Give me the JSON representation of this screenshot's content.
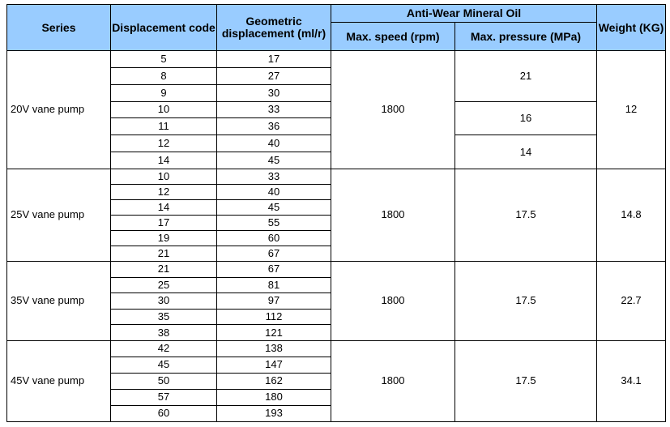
{
  "header": {
    "series": "Series",
    "code": "Displacement code",
    "geometric": "Geometric displacement (ml/r)",
    "oil": "Anti-Wear Mineral Oil",
    "speed": "Max. speed  (rpm)",
    "pressure": "Max. pressure (MPa)",
    "weight": "Weight (KG)"
  },
  "header_color": "#99ccff",
  "groups": [
    {
      "series": "20V vane pump",
      "speed": "1800",
      "weight": "12",
      "rows": [
        [
          "5",
          "17"
        ],
        [
          "8",
          "27"
        ],
        [
          "9",
          "30"
        ],
        [
          "10",
          "33"
        ],
        [
          "11",
          "36"
        ],
        [
          "12",
          "40"
        ],
        [
          "14",
          "45"
        ]
      ],
      "pressures": [
        {
          "value": "21",
          "span": 3
        },
        {
          "value": "16",
          "span": 2
        },
        {
          "value": "14",
          "span": 2
        }
      ]
    },
    {
      "series": "25V vane pump",
      "speed": "1800",
      "weight": "14.8",
      "rows": [
        [
          "10",
          "33"
        ],
        [
          "12",
          "40"
        ],
        [
          "14",
          "45"
        ],
        [
          "17",
          "55"
        ],
        [
          "19",
          "60"
        ],
        [
          "21",
          "67"
        ]
      ],
      "pressures": [
        {
          "value": "17.5",
          "span": 6
        }
      ]
    },
    {
      "series": "35V vane pump",
      "speed": "1800",
      "weight": "22.7",
      "rows": [
        [
          "21",
          "67"
        ],
        [
          "25",
          "81"
        ],
        [
          "30",
          "97"
        ],
        [
          "35",
          "112"
        ],
        [
          "38",
          "121"
        ]
      ],
      "pressures": [
        {
          "value": "17.5",
          "span": 5
        }
      ]
    },
    {
      "series": "45V vane pump",
      "speed": "1800",
      "weight": "34.1",
      "rows": [
        [
          "42",
          "138"
        ],
        [
          "45",
          "147"
        ],
        [
          "50",
          "162"
        ],
        [
          "57",
          "180"
        ],
        [
          "60",
          "193"
        ]
      ],
      "pressures": [
        {
          "value": "17.5",
          "span": 5
        }
      ]
    }
  ]
}
